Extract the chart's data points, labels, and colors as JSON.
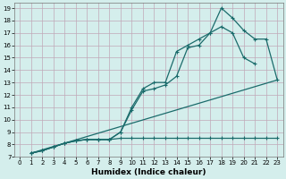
{
  "background_color": "#d4eeec",
  "grid_color": "#c0a8b8",
  "line_color": "#1a6b6b",
  "xlabel": "Humidex (Indice chaleur)",
  "xlim": [
    -0.5,
    23.5
  ],
  "ylim": [
    7,
    19.4
  ],
  "xticks": [
    0,
    1,
    2,
    3,
    4,
    5,
    6,
    7,
    8,
    9,
    10,
    11,
    12,
    13,
    14,
    15,
    16,
    17,
    18,
    19,
    20,
    21,
    22,
    23
  ],
  "yticks": [
    7,
    8,
    9,
    10,
    11,
    12,
    13,
    14,
    15,
    16,
    17,
    18,
    19
  ],
  "lines": [
    {
      "x": [
        1,
        2,
        3,
        4,
        5,
        6,
        7,
        8,
        9,
        10,
        11,
        12,
        13,
        14,
        15,
        16,
        17,
        18,
        19,
        20,
        21,
        22,
        23
      ],
      "y": [
        7.3,
        7.5,
        7.8,
        8.1,
        8.3,
        8.4,
        8.4,
        8.4,
        8.5,
        8.5,
        8.5,
        8.5,
        8.5,
        8.5,
        8.5,
        8.5,
        8.5,
        8.5,
        8.5,
        8.5,
        8.5,
        8.5,
        8.5
      ]
    },
    {
      "x": [
        1,
        2,
        3,
        4,
        5,
        6,
        7,
        8,
        9,
        10,
        11,
        12,
        13,
        14,
        15,
        16,
        17,
        18,
        19,
        20,
        21,
        22,
        23
      ],
      "y": [
        7.3,
        7.5,
        7.8,
        8.1,
        8.3,
        8.4,
        8.4,
        8.4,
        9.0,
        10.8,
        12.3,
        12.5,
        12.8,
        13.5,
        15.8,
        16.0,
        17.0,
        19.0,
        18.2,
        17.2,
        16.5,
        16.5,
        13.2
      ]
    },
    {
      "x": [
        1,
        2,
        3,
        4,
        5,
        6,
        7,
        8,
        9,
        10,
        11,
        12,
        13,
        14,
        15,
        16,
        17,
        18,
        19,
        20,
        21
      ],
      "y": [
        7.3,
        7.5,
        7.8,
        8.1,
        8.3,
        8.4,
        8.4,
        8.4,
        9.0,
        11.0,
        12.5,
        13.0,
        13.0,
        15.5,
        16.0,
        16.5,
        17.0,
        17.5,
        17.0,
        15.0,
        14.5
      ]
    },
    {
      "x": [
        1,
        23
      ],
      "y": [
        7.3,
        13.2
      ]
    }
  ]
}
